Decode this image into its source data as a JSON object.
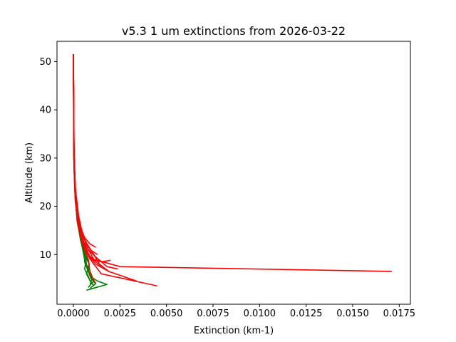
{
  "chart_data": {
    "type": "line",
    "title": "v5.3 1 um extinctions from 2026-03-22",
    "xlabel": "Extinction (km-1)",
    "ylabel": "Altitude (km)",
    "xlim": [
      -0.00088,
      0.0181
    ],
    "ylim": [
      -0.3,
      54.2
    ],
    "xticks": [
      0.0,
      0.0025,
      0.005,
      0.0075,
      0.01,
      0.0125,
      0.015,
      0.0175
    ],
    "xtick_labels": [
      "0.0000",
      "0.0025",
      "0.0050",
      "0.0075",
      "0.0100",
      "0.0125",
      "0.0150",
      "0.0175"
    ],
    "yticks": [
      10,
      20,
      30,
      40,
      50
    ],
    "ytick_labels": [
      "10",
      "20",
      "30",
      "40",
      "50"
    ],
    "grid": false,
    "colors": {
      "green_series": "#008000",
      "red_series": "#ff0000"
    },
    "series": [
      {
        "color": "#008000",
        "x": [
          0,
          2e-05,
          8e-05,
          0.0002,
          0.0004,
          0.0006,
          0.00085,
          0.0008,
          0.00095,
          0.0012,
          0.0009
        ],
        "y": [
          51.5,
          35,
          25,
          18,
          13,
          10.5,
          8,
          6.5,
          5,
          4,
          3
        ]
      },
      {
        "color": "#008000",
        "x": [
          0,
          3e-05,
          0.0001,
          0.00025,
          0.00045,
          0.0007,
          0.0006,
          0.0008,
          0.0009,
          0.0011
        ],
        "y": [
          51.5,
          30,
          22,
          16,
          12,
          9,
          7,
          5.5,
          4.5,
          3.5
        ]
      },
      {
        "color": "#008000",
        "x": [
          0,
          2e-05,
          7e-05,
          0.0002,
          0.0004,
          0.00065,
          0.0007,
          0.00095,
          0.0011,
          0.0008
        ],
        "y": [
          51.5,
          32,
          24,
          17,
          13,
          9.5,
          8,
          6,
          4.5,
          3.2
        ]
      },
      {
        "color": "#008000",
        "x": [
          0,
          3e-05,
          9e-05,
          0.00022,
          0.00042,
          0.0006,
          0.0006,
          0.00075,
          0.0009,
          0.0013,
          0.0018,
          0.0007
        ],
        "y": [
          51.5,
          33,
          23,
          16.5,
          12.5,
          10,
          8.5,
          7,
          5.5,
          4.5,
          3.8,
          2.6
        ]
      },
      {
        "color": "#008000",
        "x": [
          0,
          2e-05,
          8e-05,
          0.0002,
          0.0004,
          0.00055,
          0.00065,
          0.0008,
          0.001,
          0.0009
        ],
        "y": [
          51.5,
          31,
          23,
          17,
          13,
          10,
          8,
          6.5,
          5,
          3.8
        ]
      },
      {
        "color": "#008000",
        "x": [
          0,
          2e-05,
          7e-05,
          0.00018,
          0.00038,
          0.0006,
          0.00085,
          0.0007,
          0.00095
        ],
        "y": [
          51.5,
          34,
          25,
          18,
          13,
          10,
          8,
          6,
          4.2
        ]
      },
      {
        "color": "#ff0000",
        "x": [
          0,
          3e-05,
          0.0001,
          0.00028,
          0.0005,
          0.0008,
          0.0011,
          0.0025,
          0.0171
        ],
        "y": [
          51.5,
          32,
          24,
          18,
          14,
          11,
          9,
          7.5,
          6.5
        ]
      },
      {
        "color": "#ff0000",
        "x": [
          0,
          3e-05,
          0.00012,
          0.0003,
          0.0006,
          0.001,
          0.0015,
          0.0045
        ],
        "y": [
          51.5,
          30,
          22,
          16,
          12,
          8.5,
          6,
          3.5
        ]
      },
      {
        "color": "#ff0000",
        "x": [
          0,
          2e-05,
          0.0001,
          0.00025,
          0.0005,
          0.0008,
          0.0012,
          0.0019,
          0.0034
        ],
        "y": [
          51.5,
          33,
          23,
          17,
          13,
          10,
          8,
          6.5,
          4.5
        ]
      },
      {
        "color": "#ff0000",
        "x": [
          0,
          4e-05,
          0.00012,
          0.00028,
          0.0005,
          0.0008,
          0.0012,
          0.0018,
          0.0024
        ],
        "y": [
          51.5,
          31,
          22,
          17,
          13,
          11,
          9.5,
          7.5,
          7
        ]
      },
      {
        "color": "#ff0000",
        "x": [
          0,
          3e-05,
          0.0001,
          0.00027,
          0.0005,
          0.0007,
          0.0009,
          0.0015,
          0.002
        ],
        "y": [
          51.5,
          29,
          21,
          16,
          12.5,
          10.5,
          9,
          8.5,
          8.8
        ]
      },
      {
        "color": "#ff0000",
        "x": [
          0,
          3e-05,
          0.0001,
          0.0003,
          0.0006,
          0.0011,
          0.0014,
          0.0019
        ],
        "y": [
          51.5,
          30,
          22,
          17,
          13,
          10,
          8,
          6.5
        ]
      },
      {
        "color": "#ff0000",
        "x": [
          0,
          3e-05,
          0.00011,
          0.0003,
          0.0006,
          0.0009,
          0.0012
        ],
        "y": [
          51.5,
          28,
          21,
          16.5,
          13.5,
          12.2,
          11.5
        ]
      },
      {
        "color": "#ff0000",
        "x": [
          0,
          2e-05,
          0.0001,
          0.00025,
          0.0005,
          0.0008,
          0.0009,
          0.0012
        ],
        "y": [
          51.5,
          30,
          22,
          16,
          12,
          9,
          6,
          4
        ]
      },
      {
        "color": "#ff0000",
        "x": [
          0,
          3e-05,
          0.00011,
          0.00027,
          0.0005,
          0.0008,
          0.0012,
          0.0015
        ],
        "y": [
          51.5,
          31,
          23,
          17,
          13,
          10,
          8.5,
          7.5
        ]
      },
      {
        "color": "#ff0000",
        "x": [
          0,
          4e-05,
          0.00015,
          0.0003,
          0.00055,
          0.0009,
          0.0013
        ],
        "y": [
          51.5,
          27,
          20,
          16.5,
          13.5,
          11,
          10
        ]
      }
    ]
  }
}
